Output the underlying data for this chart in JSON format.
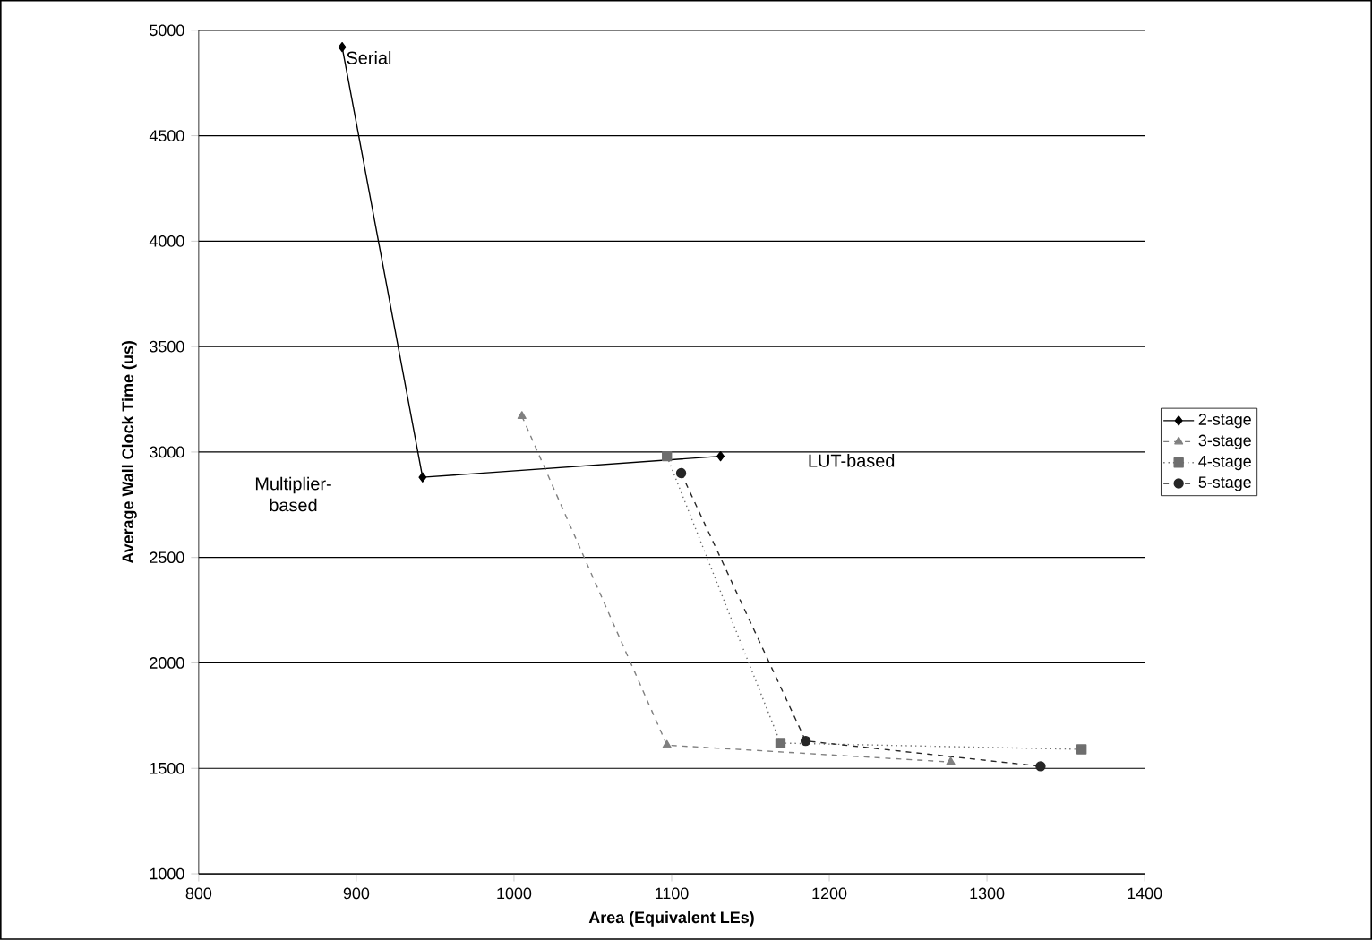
{
  "chart_data": {
    "type": "line",
    "xlabel": "Area (Equivalent LEs)",
    "ylabel": "Average Wall Clock Time (us)",
    "xlim": [
      800,
      1400
    ],
    "xticks": [
      800,
      900,
      1000,
      1100,
      1200,
      1300,
      1400
    ],
    "ylim": [
      1000,
      5000
    ],
    "yticks": [
      1000,
      1500,
      2000,
      2500,
      3000,
      3500,
      4000,
      4500,
      5000
    ],
    "grid": "y",
    "legend": "right",
    "series": [
      {
        "name": "2-stage",
        "color": "#000000",
        "marker": "diamond",
        "line_style": "solid",
        "x": [
          891,
          942,
          1131
        ],
        "values": [
          4920,
          2880,
          2980
        ]
      },
      {
        "name": "3-stage",
        "color": "#808080",
        "marker": "triangle",
        "line_style": "dashed",
        "x": [
          1005,
          1097,
          1277
        ],
        "values": [
          3170,
          1610,
          1530
        ]
      },
      {
        "name": "4-stage",
        "color": "#6e6e6e",
        "marker": "square",
        "line_style": "dotted",
        "x": [
          1097,
          1169,
          1360
        ],
        "values": [
          2980,
          1620,
          1590
        ]
      },
      {
        "name": "5-stage",
        "color": "#262626",
        "marker": "circle",
        "line_style": "dashed",
        "x": [
          1106,
          1185,
          1334
        ],
        "values": [
          2900,
          1630,
          1510
        ]
      }
    ],
    "annotations": [
      {
        "text": "Serial",
        "x": 891,
        "y": 4920
      },
      "Multiplier-based",
      "LUT-based"
    ]
  }
}
